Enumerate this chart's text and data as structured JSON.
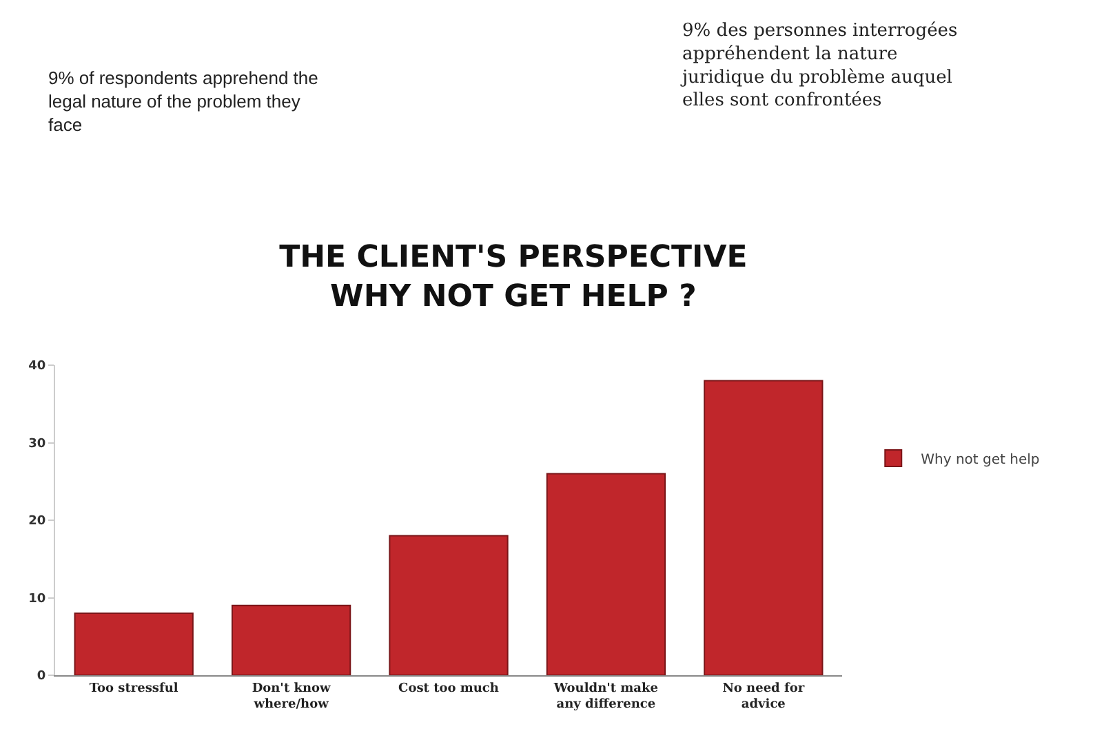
{
  "chart_data": {
    "type": "bar",
    "title": "THE CLIENT'S PERSPECTIVE\nWHY NOT GET HELP ?",
    "annotations": [
      "9% of respondents apprehend the legal nature of the problem they face",
      "9% des personnes interrogées appréhendent la nature juridique du problème auquel elles sont confrontées"
    ],
    "categories": [
      "Too stressful",
      "Don't know where/how",
      "Cost too much",
      "Wouldn't make any difference",
      "No need for advice"
    ],
    "series": [
      {
        "name": "Why not get help",
        "color": "#c0262b",
        "values": [
          8,
          9,
          18,
          26,
          38
        ]
      }
    ],
    "ylim": [
      0,
      40
    ],
    "yticks": [
      0,
      10,
      20,
      30,
      40
    ],
    "grid": false,
    "legend": "right"
  }
}
